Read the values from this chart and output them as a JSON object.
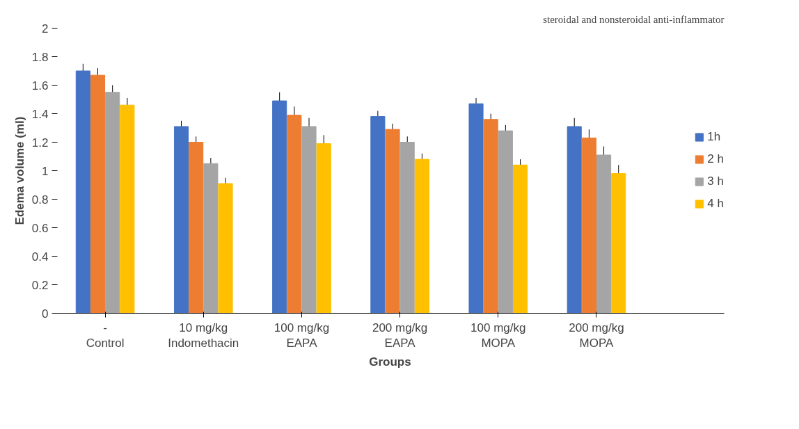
{
  "chart_data": {
    "type": "bar",
    "xlabel": "Groups",
    "ylabel": "Edema volume (ml)",
    "annotations": [
      "steroidal and nonsteroidal anti-inflammator"
    ],
    "categories": [
      "-\nControl",
      "10 mg/kg\nIndomethacin",
      "100 mg/kg\nEAPA",
      "200 mg/kg\nEAPA",
      "100 mg/kg\nMOPA",
      "200 mg/kg\nMOPA"
    ],
    "series": [
      {
        "name": "1h",
        "color": "#4472c4",
        "values": [
          1.7,
          1.31,
          1.49,
          1.38,
          1.47,
          1.31
        ],
        "errors": [
          0.05,
          0.04,
          0.06,
          0.04,
          0.04,
          0.06
        ]
      },
      {
        "name": "2 h",
        "color": "#ed7d31",
        "values": [
          1.67,
          1.2,
          1.39,
          1.29,
          1.36,
          1.23
        ],
        "errors": [
          0.05,
          0.04,
          0.06,
          0.04,
          0.04,
          0.06
        ]
      },
      {
        "name": "3 h",
        "color": "#a5a5a5",
        "values": [
          1.55,
          1.05,
          1.31,
          1.2,
          1.28,
          1.11
        ],
        "errors": [
          0.05,
          0.04,
          0.06,
          0.04,
          0.04,
          0.06
        ]
      },
      {
        "name": "4 h",
        "color": "#ffc000",
        "values": [
          1.46,
          0.91,
          1.19,
          1.08,
          1.04,
          0.98
        ],
        "errors": [
          0.05,
          0.04,
          0.06,
          0.04,
          0.04,
          0.06
        ]
      }
    ],
    "ylim": [
      0,
      2
    ],
    "yticks": [
      0,
      0.2,
      0.4,
      0.6,
      0.8,
      1,
      1.2,
      1.4,
      1.6,
      1.8,
      2
    ],
    "grid": false,
    "legend": "right"
  }
}
